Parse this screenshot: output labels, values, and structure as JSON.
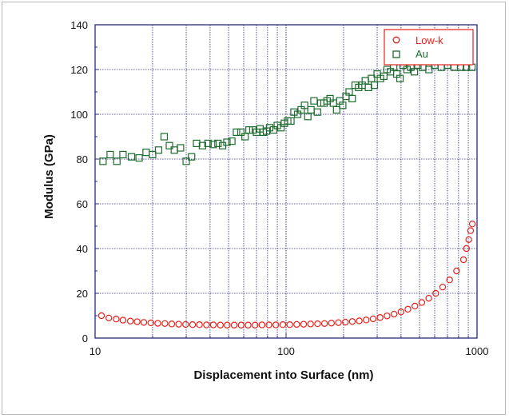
{
  "chart_data": {
    "type": "scatter",
    "xscale": "log",
    "xlim": [
      10,
      1000
    ],
    "ylim": [
      0,
      140
    ],
    "grid": true,
    "legend_position": "top-right",
    "xlabel": "Displacement into Surface (nm)",
    "ylabel": "Modulus (GPa)",
    "x_ticks": [
      "10",
      "100",
      "1000"
    ],
    "y_ticks": [
      "0",
      "20",
      "40",
      "60",
      "80",
      "100",
      "120",
      "140"
    ],
    "series": [
      {
        "name": "Low-k",
        "color": "#e8211b",
        "marker": "circle",
        "points": [
          [
            10.8,
            10
          ],
          [
            11.8,
            9
          ],
          [
            12.9,
            8.5
          ],
          [
            14,
            8
          ],
          [
            15.3,
            7.6
          ],
          [
            16.6,
            7.3
          ],
          [
            18,
            7
          ],
          [
            19.6,
            6.8
          ],
          [
            21.3,
            6.6
          ],
          [
            23.2,
            6.5
          ],
          [
            25.2,
            6.3
          ],
          [
            27.4,
            6.2
          ],
          [
            29.8,
            6.1
          ],
          [
            32.4,
            6
          ],
          [
            35.2,
            6
          ],
          [
            38.3,
            5.9
          ],
          [
            41.6,
            5.9
          ],
          [
            45.3,
            5.8
          ],
          [
            49.2,
            5.8
          ],
          [
            53.5,
            5.8
          ],
          [
            58.2,
            5.8
          ],
          [
            63.3,
            5.8
          ],
          [
            68.8,
            5.8
          ],
          [
            74.8,
            5.9
          ],
          [
            81.3,
            5.9
          ],
          [
            88.4,
            5.9
          ],
          [
            96.2,
            6
          ],
          [
            104.6,
            6
          ],
          [
            113.7,
            6.1
          ],
          [
            123.6,
            6.2
          ],
          [
            134.4,
            6.3
          ],
          [
            146.2,
            6.4
          ],
          [
            159,
            6.5
          ],
          [
            172.9,
            6.7
          ],
          [
            188,
            6.9
          ],
          [
            204.4,
            7.1
          ],
          [
            222.3,
            7.4
          ],
          [
            241.7,
            7.7
          ],
          [
            262.8,
            8.1
          ],
          [
            285.8,
            8.6
          ],
          [
            310.8,
            9.2
          ],
          [
            338,
            9.9
          ],
          [
            367.5,
            10.7
          ],
          [
            399.7,
            11.7
          ],
          [
            434.6,
            12.9
          ],
          [
            472.6,
            14.3
          ],
          [
            513.9,
            15.9
          ],
          [
            558.8,
            17.8
          ],
          [
            607.6,
            20
          ],
          [
            660.8,
            22.8
          ],
          [
            718.5,
            26
          ],
          [
            781.3,
            30
          ],
          [
            849.6,
            35
          ],
          [
            880,
            40
          ],
          [
            905,
            44
          ],
          [
            925,
            48
          ],
          [
            945,
            51
          ]
        ]
      },
      {
        "name": "Au",
        "color": "#1e6b2e",
        "marker": "square",
        "points": [
          [
            11,
            79
          ],
          [
            12,
            82
          ],
          [
            13,
            79
          ],
          [
            14,
            82
          ],
          [
            15.5,
            81
          ],
          [
            17,
            80.5
          ],
          [
            18.5,
            83
          ],
          [
            20,
            82
          ],
          [
            21.5,
            84
          ],
          [
            23,
            90
          ],
          [
            24.5,
            86
          ],
          [
            26,
            84
          ],
          [
            28,
            85
          ],
          [
            30,
            79
          ],
          [
            32,
            81
          ],
          [
            34,
            87
          ],
          [
            36.5,
            86
          ],
          [
            39,
            87
          ],
          [
            41.5,
            86.5
          ],
          [
            44,
            87
          ],
          [
            46.5,
            86
          ],
          [
            49,
            87.5
          ],
          [
            52,
            88
          ],
          [
            55,
            92
          ],
          [
            58,
            92
          ],
          [
            61,
            90
          ],
          [
            64,
            93
          ],
          [
            67,
            93
          ],
          [
            70,
            92
          ],
          [
            73,
            93.5
          ],
          [
            76,
            92
          ],
          [
            79,
            92.5
          ],
          [
            82,
            94
          ],
          [
            86,
            93
          ],
          [
            90,
            95
          ],
          [
            94,
            94
          ],
          [
            98,
            96
          ],
          [
            102,
            97
          ],
          [
            106,
            97
          ],
          [
            110,
            101
          ],
          [
            115,
            100
          ],
          [
            120,
            102
          ],
          [
            125,
            104
          ],
          [
            130,
            99
          ],
          [
            135,
            102
          ],
          [
            140,
            106
          ],
          [
            146,
            101
          ],
          [
            152,
            105
          ],
          [
            158,
            105
          ],
          [
            164,
            106
          ],
          [
            170,
            107
          ],
          [
            177,
            105
          ],
          [
            184,
            102
          ],
          [
            191,
            106
          ],
          [
            198,
            104
          ],
          [
            206,
            108
          ],
          [
            214,
            110
          ],
          [
            222,
            107
          ],
          [
            230,
            113
          ],
          [
            240,
            112
          ],
          [
            250,
            113
          ],
          [
            260,
            115
          ],
          [
            270,
            112
          ],
          [
            280,
            116
          ],
          [
            290,
            113
          ],
          [
            300,
            118
          ],
          [
            312,
            116
          ],
          [
            325,
            117
          ],
          [
            338,
            120
          ],
          [
            352,
            119
          ],
          [
            366,
            121
          ],
          [
            380,
            118
          ],
          [
            395,
            116
          ],
          [
            410,
            122
          ],
          [
            430,
            120
          ],
          [
            450,
            121
          ],
          [
            470,
            119
          ],
          [
            490,
            122
          ],
          [
            520,
            121
          ],
          [
            560,
            120
          ],
          [
            600,
            122
          ],
          [
            650,
            121
          ],
          [
            700,
            122
          ],
          [
            760,
            121
          ],
          [
            820,
            121
          ],
          [
            880,
            121
          ],
          [
            940,
            121
          ]
        ]
      }
    ]
  }
}
